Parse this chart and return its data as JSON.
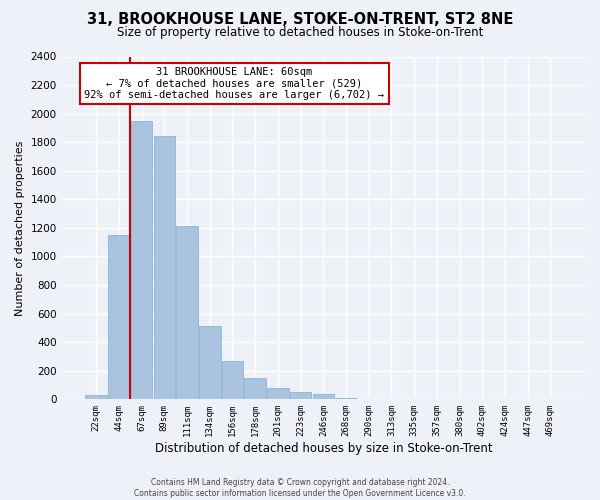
{
  "title": "31, BROOKHOUSE LANE, STOKE-ON-TRENT, ST2 8NE",
  "subtitle": "Size of property relative to detached houses in Stoke-on-Trent",
  "xlabel": "Distribution of detached houses by size in Stoke-on-Trent",
  "ylabel": "Number of detached properties",
  "bin_labels": [
    "22sqm",
    "44sqm",
    "67sqm",
    "89sqm",
    "111sqm",
    "134sqm",
    "156sqm",
    "178sqm",
    "201sqm",
    "223sqm",
    "246sqm",
    "268sqm",
    "290sqm",
    "313sqm",
    "335sqm",
    "357sqm",
    "380sqm",
    "402sqm",
    "424sqm",
    "447sqm",
    "469sqm"
  ],
  "bar_heights": [
    30,
    1150,
    1950,
    1840,
    1210,
    510,
    270,
    150,
    80,
    50,
    35,
    10,
    5,
    3,
    2,
    1,
    1,
    0,
    0,
    0,
    0
  ],
  "bar_color": "#aac4e0",
  "bar_edgecolor": "#8ab8d8",
  "property_sqm": 60,
  "annotation_title": "31 BROOKHOUSE LANE: 60sqm",
  "annotation_line1": "← 7% of detached houses are smaller (529)",
  "annotation_line2": "92% of semi-detached houses are larger (6,702) →",
  "annotation_box_color": "#ffffff",
  "annotation_box_edgecolor": "#cc0000",
  "vline_color": "#cc0000",
  "ylim": [
    0,
    2400
  ],
  "yticks": [
    0,
    200,
    400,
    600,
    800,
    1000,
    1200,
    1400,
    1600,
    1800,
    2000,
    2200,
    2400
  ],
  "footer1": "Contains HM Land Registry data © Crown copyright and database right 2024.",
  "footer2": "Contains public sector information licensed under the Open Government Licence v3.0.",
  "background_color": "#eef2f8",
  "plot_bg_color": "#eef2f8",
  "grid_color": "#ffffff",
  "title_fontsize": 10.5,
  "subtitle_fontsize": 8.5,
  "xlabel_fontsize": 8.5,
  "ylabel_fontsize": 8
}
